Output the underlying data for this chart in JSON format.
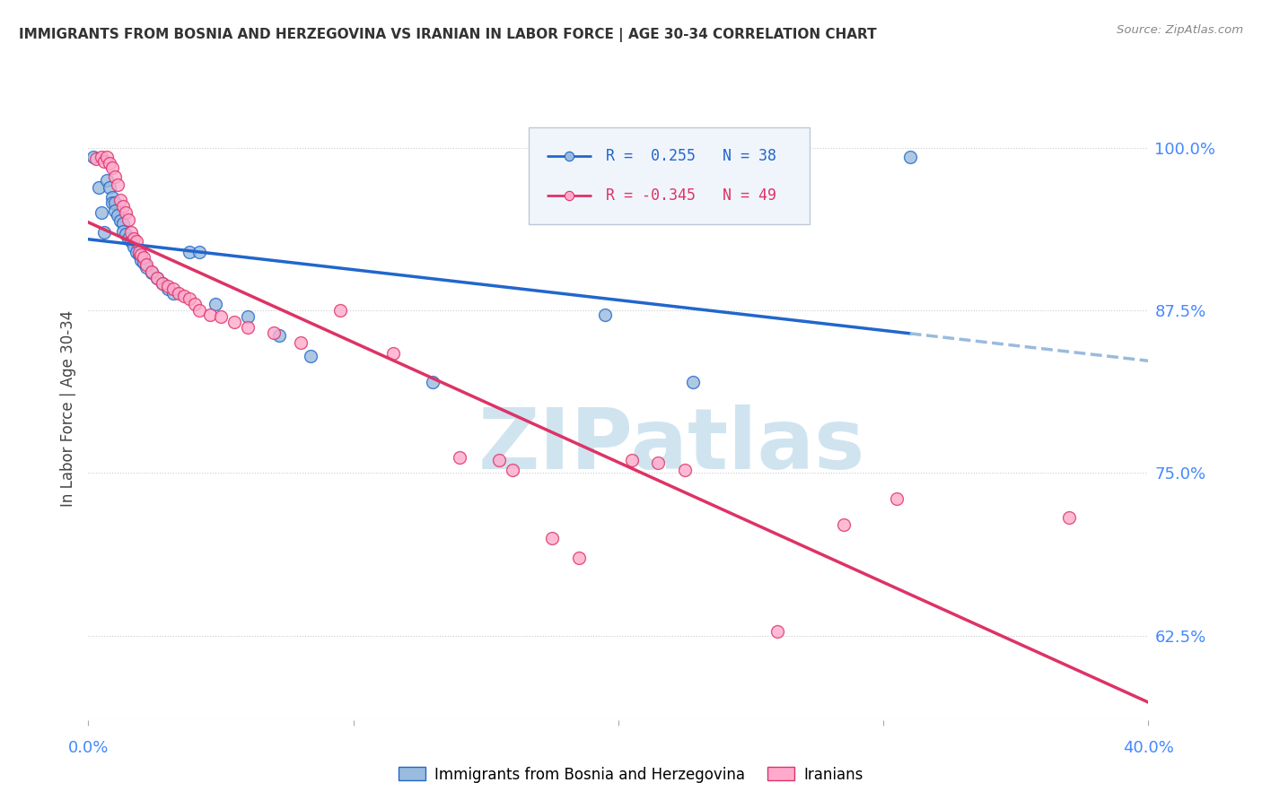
{
  "title": "IMMIGRANTS FROM BOSNIA AND HERZEGOVINA VS IRANIAN IN LABOR FORCE | AGE 30-34 CORRELATION CHART",
  "source": "Source: ZipAtlas.com",
  "ylabel": "In Labor Force | Age 30-34",
  "ytick_labels": [
    "100.0%",
    "87.5%",
    "75.0%",
    "62.5%"
  ],
  "ytick_values": [
    1.0,
    0.875,
    0.75,
    0.625
  ],
  "xlim": [
    0.0,
    0.4
  ],
  "ylim": [
    0.56,
    1.04
  ],
  "blue_R": 0.255,
  "blue_N": 38,
  "pink_R": -0.345,
  "pink_N": 49,
  "blue_scatter": [
    [
      0.002,
      0.993
    ],
    [
      0.004,
      0.97
    ],
    [
      0.005,
      0.95
    ],
    [
      0.006,
      0.935
    ],
    [
      0.007,
      0.975
    ],
    [
      0.008,
      0.97
    ],
    [
      0.009,
      0.962
    ],
    [
      0.009,
      0.958
    ],
    [
      0.01,
      0.958
    ],
    [
      0.01,
      0.952
    ],
    [
      0.011,
      0.948
    ],
    [
      0.012,
      0.944
    ],
    [
      0.013,
      0.942
    ],
    [
      0.013,
      0.936
    ],
    [
      0.014,
      0.934
    ],
    [
      0.015,
      0.93
    ],
    [
      0.016,
      0.928
    ],
    [
      0.017,
      0.924
    ],
    [
      0.018,
      0.92
    ],
    [
      0.019,
      0.918
    ],
    [
      0.02,
      0.914
    ],
    [
      0.021,
      0.912
    ],
    [
      0.022,
      0.908
    ],
    [
      0.024,
      0.904
    ],
    [
      0.026,
      0.9
    ],
    [
      0.028,
      0.896
    ],
    [
      0.03,
      0.892
    ],
    [
      0.032,
      0.888
    ],
    [
      0.038,
      0.92
    ],
    [
      0.042,
      0.92
    ],
    [
      0.048,
      0.88
    ],
    [
      0.06,
      0.87
    ],
    [
      0.072,
      0.856
    ],
    [
      0.084,
      0.84
    ],
    [
      0.13,
      0.82
    ],
    [
      0.195,
      0.872
    ],
    [
      0.228,
      0.82
    ],
    [
      0.31,
      0.993
    ]
  ],
  "pink_scatter": [
    [
      0.003,
      0.992
    ],
    [
      0.005,
      0.993
    ],
    [
      0.006,
      0.99
    ],
    [
      0.007,
      0.993
    ],
    [
      0.008,
      0.988
    ],
    [
      0.009,
      0.985
    ],
    [
      0.01,
      0.978
    ],
    [
      0.011,
      0.972
    ],
    [
      0.012,
      0.96
    ],
    [
      0.013,
      0.955
    ],
    [
      0.014,
      0.95
    ],
    [
      0.015,
      0.945
    ],
    [
      0.016,
      0.935
    ],
    [
      0.017,
      0.93
    ],
    [
      0.018,
      0.928
    ],
    [
      0.019,
      0.92
    ],
    [
      0.02,
      0.918
    ],
    [
      0.021,
      0.916
    ],
    [
      0.022,
      0.91
    ],
    [
      0.024,
      0.905
    ],
    [
      0.026,
      0.9
    ],
    [
      0.028,
      0.896
    ],
    [
      0.03,
      0.894
    ],
    [
      0.032,
      0.892
    ],
    [
      0.034,
      0.888
    ],
    [
      0.036,
      0.886
    ],
    [
      0.038,
      0.884
    ],
    [
      0.04,
      0.88
    ],
    [
      0.042,
      0.875
    ],
    [
      0.046,
      0.872
    ],
    [
      0.05,
      0.87
    ],
    [
      0.055,
      0.866
    ],
    [
      0.06,
      0.862
    ],
    [
      0.07,
      0.858
    ],
    [
      0.08,
      0.85
    ],
    [
      0.095,
      0.875
    ],
    [
      0.115,
      0.842
    ],
    [
      0.14,
      0.762
    ],
    [
      0.155,
      0.76
    ],
    [
      0.16,
      0.752
    ],
    [
      0.175,
      0.7
    ],
    [
      0.185,
      0.685
    ],
    [
      0.205,
      0.76
    ],
    [
      0.215,
      0.758
    ],
    [
      0.225,
      0.752
    ],
    [
      0.26,
      0.628
    ],
    [
      0.285,
      0.71
    ],
    [
      0.305,
      0.73
    ],
    [
      0.37,
      0.716
    ]
  ],
  "blue_color": "#99bbdd",
  "pink_color": "#ffaacc",
  "blue_line_color": "#2266cc",
  "pink_line_color": "#dd3366",
  "dashed_line_color": "#99bbdd",
  "background_color": "#ffffff",
  "grid_color": "#cccccc",
  "title_color": "#333333",
  "watermark_text": "ZIPatlas",
  "watermark_color": "#d0e4f0",
  "legend_R_blue_color": "#2266cc",
  "legend_R_pink_color": "#dd3366",
  "legend_N_color": "#2266cc",
  "axis_label_color": "#4488ff",
  "ylabel_color": "#444444"
}
